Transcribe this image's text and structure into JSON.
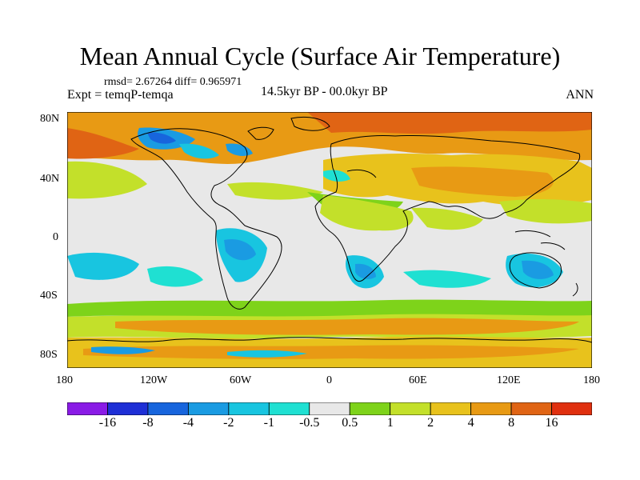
{
  "figure": {
    "title": "Mean Annual Cycle (Surface Air Temperature)",
    "stats": "rmsd= 2.67264 diff= 0.965971",
    "experiment": "Expt = temqP-temqa",
    "period": "14.5kyr BP - 00.0kyr BP",
    "season": "ANN"
  },
  "map": {
    "projection": "cylindrical equidistant",
    "lon_labels": [
      "180",
      "120W",
      "60W",
      "0",
      "60E",
      "120E",
      "180"
    ],
    "lat_labels": [
      "80N",
      "40N",
      "0",
      "40S",
      "80S"
    ],
    "coastlines": "black"
  },
  "colorbar": {
    "labels": [
      "-16",
      "-8",
      "-4",
      "-2",
      "-1",
      "-0.5",
      "0.5",
      "1",
      "2",
      "4",
      "8",
      "16"
    ],
    "colors": [
      "#8a1be6",
      "#1e2fd6",
      "#1765dd",
      "#1a9be2",
      "#18c5e0",
      "#1fe0d2",
      "#e8e8e8",
      "#7ed31a",
      "#c3e02a",
      "#e8c21c",
      "#e89a14",
      "#e06414",
      "#e0300f"
    ]
  }
}
